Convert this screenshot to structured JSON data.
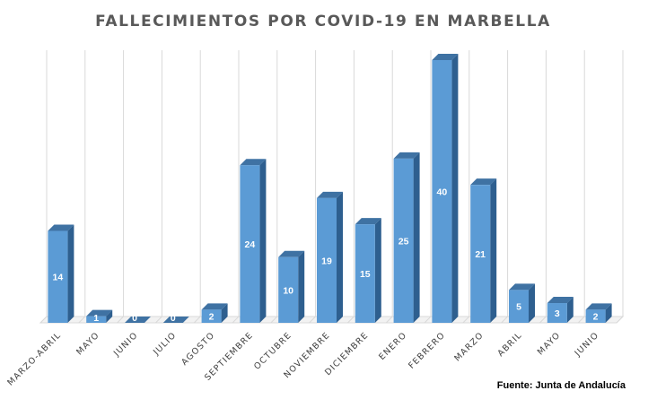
{
  "chart_data": {
    "type": "bar",
    "title": "FALLECIMIENTOS POR COVID-19 EN MARBELLA",
    "categories": [
      "MARZO-ABRIL",
      "MAYO",
      "JUNIO",
      "JULIO",
      "AGOSTO",
      "SEPTIEMBRE",
      "OCTUBRE",
      "NOVIEMBRE",
      "DICIEMBRE",
      "ENERO",
      "FEBRERO",
      "MARZO",
      "ABRIL",
      "MAYO",
      "JUNIO"
    ],
    "values": [
      14,
      1,
      0,
      0,
      2,
      24,
      10,
      19,
      15,
      25,
      40,
      21,
      5,
      3,
      2
    ],
    "xlabel": "",
    "ylabel": "",
    "ylim": [
      0,
      40
    ],
    "grid": "vertical",
    "bar_color": "#5b9bd5",
    "bar_side_color": "#2e5f8f",
    "bar_top_color": "#3f72a3",
    "label_color": "#ffffff"
  },
  "source": "Fuente: Junta de Andalucía"
}
